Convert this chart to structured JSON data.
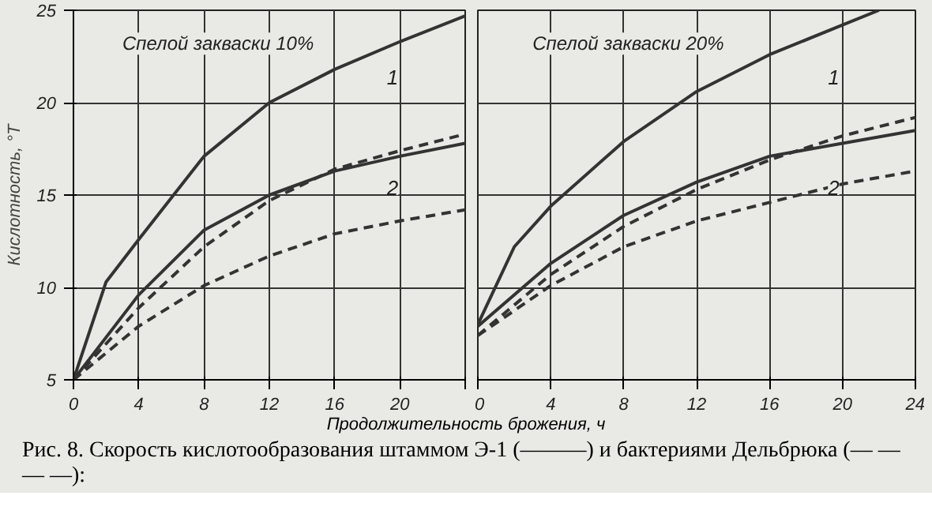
{
  "chart_data": [
    {
      "type": "line",
      "title": "Спелой закваски 10%",
      "xlabel": "Продолжительность брожения, ч",
      "ylabel": "Кислотность, °Т",
      "x": [
        0,
        2,
        4,
        8,
        12,
        16,
        20,
        24
      ],
      "xlim": [
        0,
        24
      ],
      "ylim": [
        5,
        25
      ],
      "xticks": [
        0,
        4,
        8,
        12,
        16,
        20,
        {
          "value": 24,
          "label": null
        }
      ],
      "yticks": [
        5,
        10,
        15,
        20,
        25
      ],
      "grid": true,
      "series": [
        {
          "color": "#333333",
          "line_style": "solid",
          "values": [
            5,
            10.3,
            12.6,
            17.1,
            20.0,
            21.8,
            23.3,
            24.7
          ]
        },
        {
          "color": "#333333",
          "line_style": "dashed",
          "values": [
            5,
            null,
            8.9,
            12.2,
            14.7,
            16.4,
            17.4,
            18.3
          ]
        },
        {
          "color": "#333333",
          "line_style": "solid",
          "values": [
            5,
            null,
            9.6,
            13.1,
            15.0,
            16.3,
            17.1,
            17.8
          ]
        },
        {
          "color": "#333333",
          "line_style": "dashed",
          "values": [
            5,
            null,
            7.9,
            10.1,
            11.7,
            12.9,
            13.6,
            14.2
          ]
        }
      ],
      "annotations": [
        "1",
        "2"
      ]
    },
    {
      "type": "line",
      "title": "Спелой закваски 20%",
      "x": [
        0,
        2,
        4,
        8,
        12,
        16,
        20,
        24
      ],
      "xlim": [
        0,
        24
      ],
      "ylim": [
        5,
        25
      ],
      "xticks": [
        0,
        4,
        8,
        12,
        16,
        20,
        24
      ],
      "yticks": [
        5,
        10,
        15,
        20,
        25
      ],
      "grid": true,
      "tick_labels": "x",
      "series": [
        {
          "color": "#333333",
          "line_style": "solid",
          "x": [
            0,
            2,
            4,
            8,
            12,
            16,
            20,
            22
          ],
          "values": [
            8.0,
            12.2,
            14.4,
            17.9,
            20.6,
            22.6,
            24.2,
            25
          ]
        },
        {
          "color": "#333333",
          "line_style": "dashed",
          "values": [
            7.4,
            null,
            10.7,
            13.3,
            15.3,
            16.9,
            18.2,
            19.2
          ]
        },
        {
          "color": "#333333",
          "line_style": "solid",
          "values": [
            7.9,
            null,
            11.3,
            13.9,
            15.7,
            17.1,
            17.8,
            18.5
          ]
        },
        {
          "color": "#333333",
          "line_style": "dashed",
          "values": [
            7.4,
            null,
            10.1,
            12.2,
            13.6,
            14.6,
            15.6,
            16.3
          ]
        }
      ],
      "annotations": [
        "1",
        "2",
        "Рис. 8. Скорость кислотообразования штаммом Э-1 (———) и бактериями Дельбрюка (— — — —):"
      ]
    }
  ]
}
